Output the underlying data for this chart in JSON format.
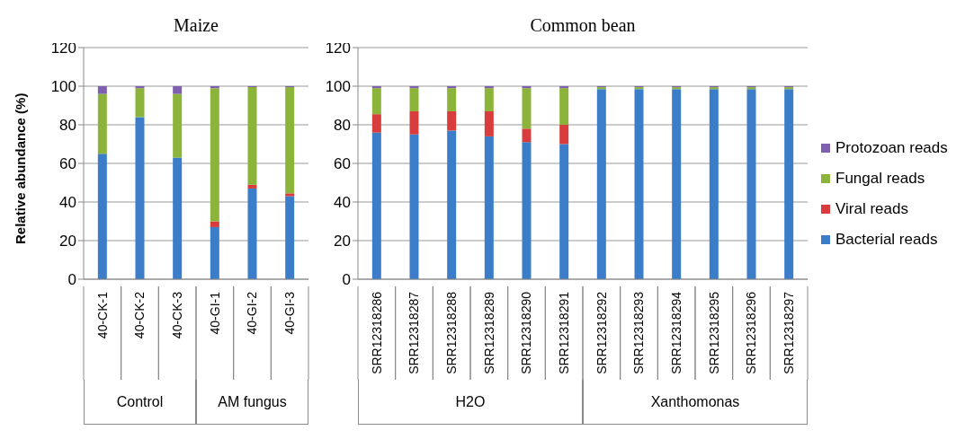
{
  "chart_data": [
    {
      "type": "bar",
      "title": "Maize",
      "ylabel": "Relative abundance (%)",
      "categories": [
        "40-CK-1",
        "40-CK-2",
        "40-CK-3",
        "40-GI-1",
        "40-GI-2",
        "40-GI-3"
      ],
      "stacked": true,
      "ylim": [
        0,
        120
      ],
      "yticks": [
        0,
        20,
        40,
        60,
        80,
        100,
        120
      ],
      "grid": "y",
      "legend": false,
      "annotations": [
        "Control",
        "AM fungus"
      ],
      "series": [
        {
          "color": "#3b7dc8",
          "values": [
            65,
            84,
            63,
            27,
            47,
            43
          ]
        },
        {
          "color": "#d83c3c",
          "values": [
            0,
            0,
            0,
            3,
            2,
            1.5
          ]
        },
        {
          "color": "#8db43a",
          "values": [
            31,
            15,
            33,
            69,
            50.5,
            55
          ]
        },
        {
          "color": "#7f5fb0",
          "values": [
            4,
            1,
            4,
            1,
            0.5,
            0.5
          ]
        }
      ]
    },
    {
      "type": "bar",
      "title": "Common bean",
      "categories": [
        "SRR12318286",
        "SRR12318287",
        "SRR12318288",
        "SRR12318289",
        "SRR12318290",
        "SRR12318291",
        "SRR12318292",
        "SRR12318293",
        "SRR12318294",
        "SRR12318295",
        "SRR12318296",
        "SRR12318297"
      ],
      "stacked": true,
      "ylim": [
        0,
        120
      ],
      "yticks": [
        0,
        20,
        40,
        60,
        80,
        100,
        120
      ],
      "grid": "y",
      "legend": "right",
      "annotations": [
        "H2O",
        "Xanthomonas"
      ],
      "series": [
        {
          "name": "Bacterial reads",
          "color": "#3b7dc8",
          "values": [
            76,
            75,
            77,
            74,
            71,
            70,
            98.5,
            98.5,
            98.5,
            98.5,
            98.5,
            98.5
          ]
        },
        {
          "name": "Viral reads",
          "color": "#d83c3c",
          "values": [
            9.5,
            12,
            10,
            13,
            7,
            10,
            0,
            0,
            0,
            0,
            0,
            0
          ]
        },
        {
          "name": "Fungal reads",
          "color": "#8db43a",
          "values": [
            13.5,
            12,
            12,
            12,
            21,
            19,
            1,
            1,
            1,
            1,
            1,
            1
          ]
        },
        {
          "name": "Protozoan reads",
          "color": "#7f5fb0",
          "values": [
            1,
            1,
            1,
            1,
            1,
            1,
            0.5,
            0.5,
            0.5,
            0.5,
            0.5,
            0.5
          ]
        }
      ]
    }
  ]
}
